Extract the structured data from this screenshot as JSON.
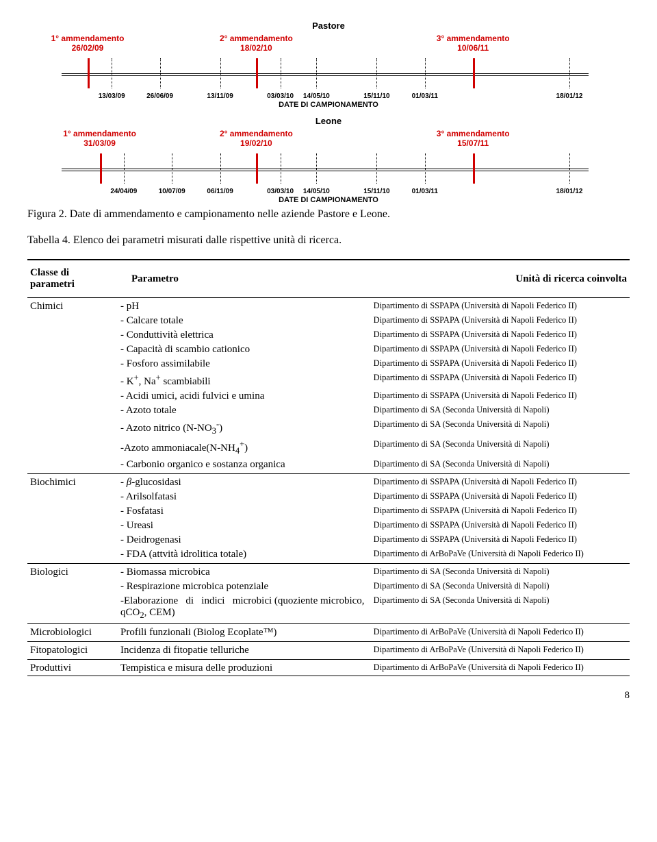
{
  "timelines": [
    {
      "title": "Pastore",
      "amendments": [
        {
          "label": "1° ammendamento",
          "date": "26/02/09",
          "x_pct": 10
        },
        {
          "label": "2° ammendamento",
          "date": "18/02/10",
          "x_pct": 38
        },
        {
          "label": "3° ammendamento",
          "date": "10/06/11",
          "x_pct": 74
        }
      ],
      "amend_tick_x": [
        10,
        38,
        74
      ],
      "sample_dates": [
        {
          "label": "13/03/09",
          "x_pct": 14
        },
        {
          "label": "26/06/09",
          "x_pct": 22
        },
        {
          "label": "13/11/09",
          "x_pct": 32
        },
        {
          "label": "03/03/10",
          "x_pct": 42
        },
        {
          "label": "14/05/10",
          "x_pct": 48
        },
        {
          "label": "15/11/10",
          "x_pct": 58
        },
        {
          "label": "01/03/11",
          "x_pct": 66
        },
        {
          "label": "18/01/12",
          "x_pct": 90
        }
      ],
      "footer": "DATE DI CAMPIONAMENTO"
    },
    {
      "title": "Leone",
      "amendments": [
        {
          "label": "1° ammendamento",
          "date": "31/03/09",
          "x_pct": 12
        },
        {
          "label": "2° ammendamento",
          "date": "19/02/10",
          "x_pct": 38
        },
        {
          "label": "3° ammendamento",
          "date": "15/07/11",
          "x_pct": 74
        }
      ],
      "amend_tick_x": [
        12,
        38,
        74
      ],
      "sample_dates": [
        {
          "label": "24/04/09",
          "x_pct": 16
        },
        {
          "label": "10/07/09",
          "x_pct": 24
        },
        {
          "label": "06/11/09",
          "x_pct": 32
        },
        {
          "label": "03/03/10",
          "x_pct": 42
        },
        {
          "label": "14/05/10",
          "x_pct": 48
        },
        {
          "label": "15/11/10",
          "x_pct": 58
        },
        {
          "label": "01/03/11",
          "x_pct": 66
        },
        {
          "label": "18/01/12",
          "x_pct": 90
        }
      ],
      "footer": "DATE DI CAMPIONAMENTO"
    }
  ],
  "colors": {
    "amend_red": "#d00000",
    "axis_black": "#000000"
  },
  "figure_caption": "Figura 2. Date di ammendamento e campionamento nelle aziende Pastore e Leone.",
  "table_caption": "Tabella 4.  Elenco dei parametri misurati dalle rispettive unità di ricerca.",
  "table": {
    "headers": {
      "class": "Classe di parametri",
      "param": "Parametro",
      "unit": "Unità di ricerca coinvolta"
    },
    "groups": [
      {
        "class": "Chimici",
        "rows": [
          {
            "param": "- pH",
            "unit": "Dipartimento di SSPAPA (Università di Napoli Federico II)"
          },
          {
            "param": "- Calcare totale",
            "unit": "Dipartimento di SSPAPA (Università di Napoli Federico II)"
          },
          {
            "param": "- Conduttività elettrica",
            "unit": "Dipartimento di SSPAPA (Università di Napoli Federico II)"
          },
          {
            "param": "- Capacità di scambio cationico",
            "unit": "Dipartimento di SSPAPA (Università di Napoli Federico II)"
          },
          {
            "param": "- Fosforo assimilabile",
            "unit": "Dipartimento di SSPAPA (Università di Napoli Federico II)"
          },
          {
            "param_html": "- K<sup>+</sup>, Na<sup>+</sup> scambiabili",
            "unit": "Dipartimento di SSPAPA (Università di Napoli Federico II)"
          },
          {
            "param": "- Acidi umici, acidi fulvici e umina",
            "unit": "Dipartimento di SSPAPA (Università di Napoli Federico II)"
          },
          {
            "param": "- Azoto totale",
            "unit": "Dipartimento di SA (Seconda Università di Napoli)"
          },
          {
            "param_html": "- Azoto nitrico (N-NO<sub>3</sub><sup>-</sup>)",
            "unit": "Dipartimento di SA (Seconda Università di Napoli)"
          },
          {
            "param_html": "-Azoto ammoniacale(N-NH<sub>4</sub><sup>+</sup>)",
            "unit": "Dipartimento di SA (Seconda Università di Napoli)"
          },
          {
            "param": "- Carbonio organico e sostanza organica",
            "unit": "Dipartimento di SA (Seconda Università di Napoli)"
          }
        ]
      },
      {
        "class": "Biochimici",
        "rows": [
          {
            "param_html": "- <span class='italic'>β</span>-glucosidasi",
            "unit": "Dipartimento di SSPAPA (Università di Napoli Federico II)"
          },
          {
            "param": "- Arilsolfatasi",
            "unit": "Dipartimento di SSPAPA (Università di Napoli Federico II)"
          },
          {
            "param": "- Fosfatasi",
            "unit": "Dipartimento di SSPAPA (Università di Napoli Federico II)"
          },
          {
            "param": "- Ureasi",
            "unit": "Dipartimento di SSPAPA (Università di Napoli Federico II)"
          },
          {
            "param": "- Deidrogenasi",
            "unit": "Dipartimento di SSPAPA (Università di Napoli Federico II)"
          },
          {
            "param": "- FDA (attvità idrolitica totale)",
            "unit": "Dipartimento di ArBoPaVe  (Università di Napoli Federico II)"
          }
        ]
      },
      {
        "class": "Biologici",
        "rows": [
          {
            "param": "- Biomassa microbica",
            "unit": "Dipartimento di SA (Seconda Università di Napoli)"
          },
          {
            "param": "- Respirazione microbica potenziale",
            "unit": "Dipartimento di SA (Seconda Università di Napoli)"
          },
          {
            "param_html": "-Elaborazione&nbsp;&nbsp;&nbsp;di&nbsp;&nbsp;&nbsp;indici&nbsp;&nbsp;&nbsp;microbici (quoziente microbico, qCO<sub>2</sub>, CEM)",
            "unit": "Dipartimento di SA (Seconda Università di Napoli)"
          }
        ]
      },
      {
        "class": "Microbiologici",
        "rows": [
          {
            "param": "Profili funzionali (Biolog Ecoplate™)",
            "unit": "Dipartimento di ArBoPaVe  (Università di Napoli Federico II)"
          }
        ]
      },
      {
        "class": "Fitopatologici",
        "rows": [
          {
            "param": "Incidenza di fitopatie telluriche",
            "unit": "Dipartimento di ArBoPaVe  (Università di Napoli Federico II)"
          }
        ]
      },
      {
        "class": "Produttivi",
        "rows": [
          {
            "param": "Tempistica e misura delle produzioni",
            "unit": "Dipartimento di ArBoPaVe  (Università di Napoli Federico II)"
          }
        ]
      }
    ]
  },
  "page_number": "8"
}
